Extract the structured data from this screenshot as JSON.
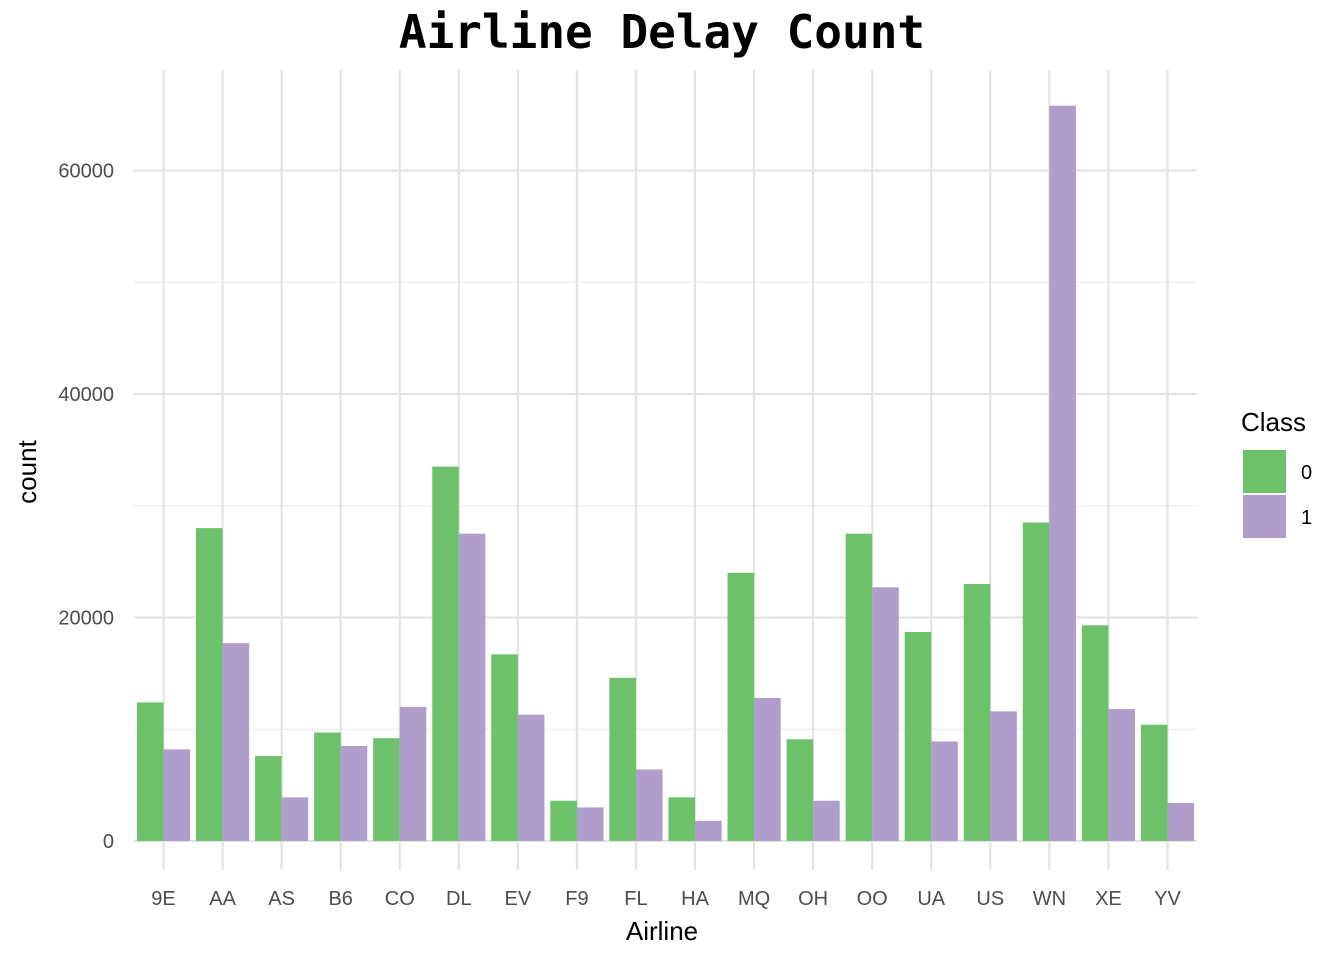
{
  "chart_data": {
    "type": "bar",
    "title": "Airline Delay Count",
    "xlabel": "Airline",
    "ylabel": "count",
    "categories": [
      "9E",
      "AA",
      "AS",
      "B6",
      "CO",
      "DL",
      "EV",
      "F9",
      "FL",
      "HA",
      "MQ",
      "OH",
      "OO",
      "UA",
      "US",
      "WN",
      "XE",
      "YV"
    ],
    "series": [
      {
        "name": "0",
        "color": "#6ec16b",
        "values": [
          12400,
          28000,
          7600,
          9700,
          9200,
          33500,
          16700,
          3600,
          14600,
          3900,
          24000,
          9100,
          27500,
          18700,
          23000,
          28500,
          19300,
          10400
        ]
      },
      {
        "name": "1",
        "color": "#af9dcc",
        "values": [
          8200,
          17700,
          3900,
          8500,
          12000,
          27500,
          11300,
          3000,
          6400,
          1800,
          12800,
          3600,
          22700,
          8900,
          11600,
          65800,
          11800,
          3400
        ]
      }
    ],
    "ylim": [
      -2600,
      69000
    ],
    "yticks": [
      0,
      20000,
      40000,
      60000
    ],
    "grid": true,
    "legend": {
      "title": "Class",
      "placement": "right"
    }
  }
}
